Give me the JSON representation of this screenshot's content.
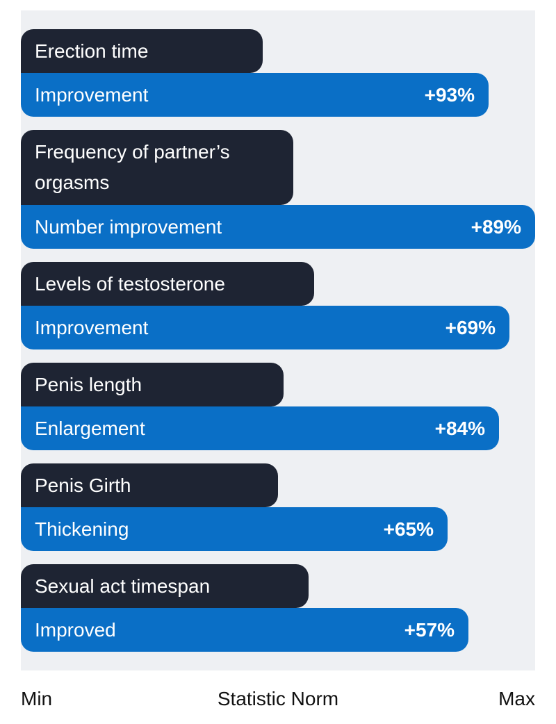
{
  "chart_data": {
    "type": "bar",
    "orientation": "horizontal",
    "categories": [
      {
        "label": "Erection time",
        "bar_label": "Improvement",
        "value_label": "+93%"
      },
      {
        "label": "Frequency of partner’s orgasms",
        "bar_label": "Number improvement",
        "value_label": "+89%"
      },
      {
        "label": "Levels of testosterone",
        "bar_label": "Improvement",
        "value_label": "+69%"
      },
      {
        "label": "Penis length",
        "bar_label": "Enlargement",
        "value_label": "+84%"
      },
      {
        "label": "Penis Girth",
        "bar_label": "Thickening",
        "value_label": "+65%"
      },
      {
        "label": "Sexual act timespan",
        "bar_label": "Improved",
        "value_label": "+57%"
      }
    ],
    "values": [
      0.91,
      1.0,
      0.95,
      0.93,
      0.83,
      0.87
    ],
    "x_axis": {
      "min_label": "Min",
      "center_label": "Statistic Norm",
      "max_label": "Max"
    },
    "colors": {
      "bar": "#0a6fc6",
      "label_box": "#1e2433",
      "background": "#eef0f3"
    }
  }
}
